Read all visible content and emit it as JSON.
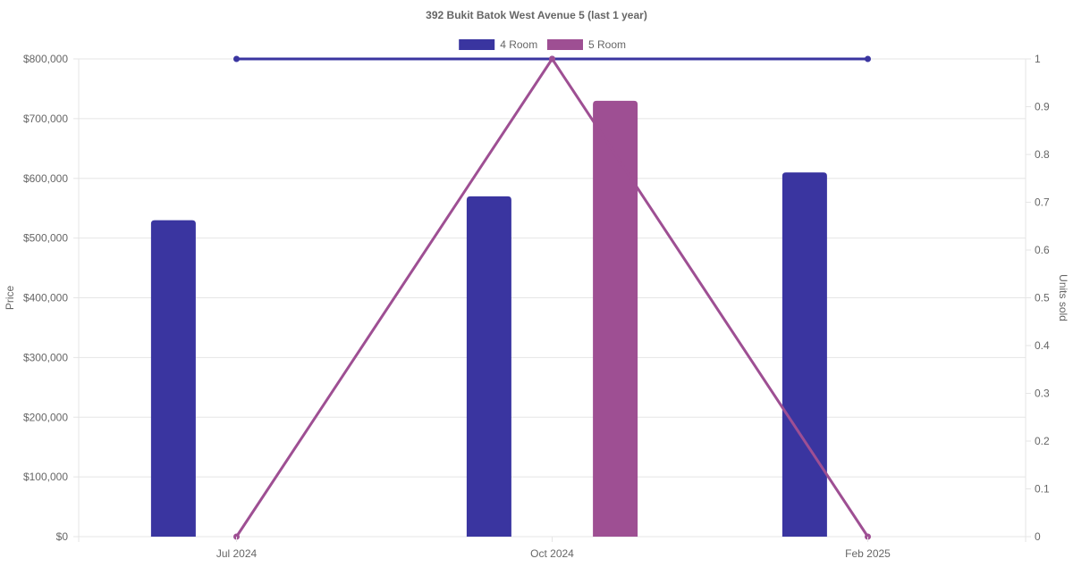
{
  "chart_data": {
    "type": "bar",
    "title": "392 Bukit Batok West Avenue 5 (last 1 year)",
    "categories": [
      "Jul 2024",
      "Oct 2024",
      "Feb 2025"
    ],
    "legend_position": "top-center",
    "grid": true,
    "y_axis_left": {
      "label": "Price",
      "range": [
        0,
        800000
      ],
      "ticks": [
        "$0",
        "$100,000",
        "$200,000",
        "$300,000",
        "$400,000",
        "$500,000",
        "$600,000",
        "$700,000",
        "$800,000"
      ]
    },
    "y_axis_right": {
      "label": "Units sold",
      "range": [
        0,
        1
      ],
      "ticks": [
        "0",
        "0.1",
        "0.2",
        "0.3",
        "0.4",
        "0.5",
        "0.6",
        "0.7",
        "0.8",
        "0.9",
        "1"
      ]
    },
    "series": [
      {
        "name": "4 Room",
        "kind": "bar",
        "axis": "price",
        "color": "#3a35a0",
        "values": [
          530000,
          570000,
          610000
        ]
      },
      {
        "name": "5 Room",
        "kind": "bar",
        "axis": "price",
        "color": "#9e4f93",
        "values": [
          null,
          730000,
          null
        ]
      }
    ],
    "unit_lines": [
      {
        "series_name": "4 Room",
        "kind": "line",
        "axis": "units",
        "color": "#3a35a0",
        "values": [
          1,
          1,
          1
        ]
      },
      {
        "series_name": "5 Room",
        "kind": "line",
        "axis": "units",
        "color": "#9e4f93",
        "values": [
          0,
          1,
          0
        ]
      }
    ]
  }
}
